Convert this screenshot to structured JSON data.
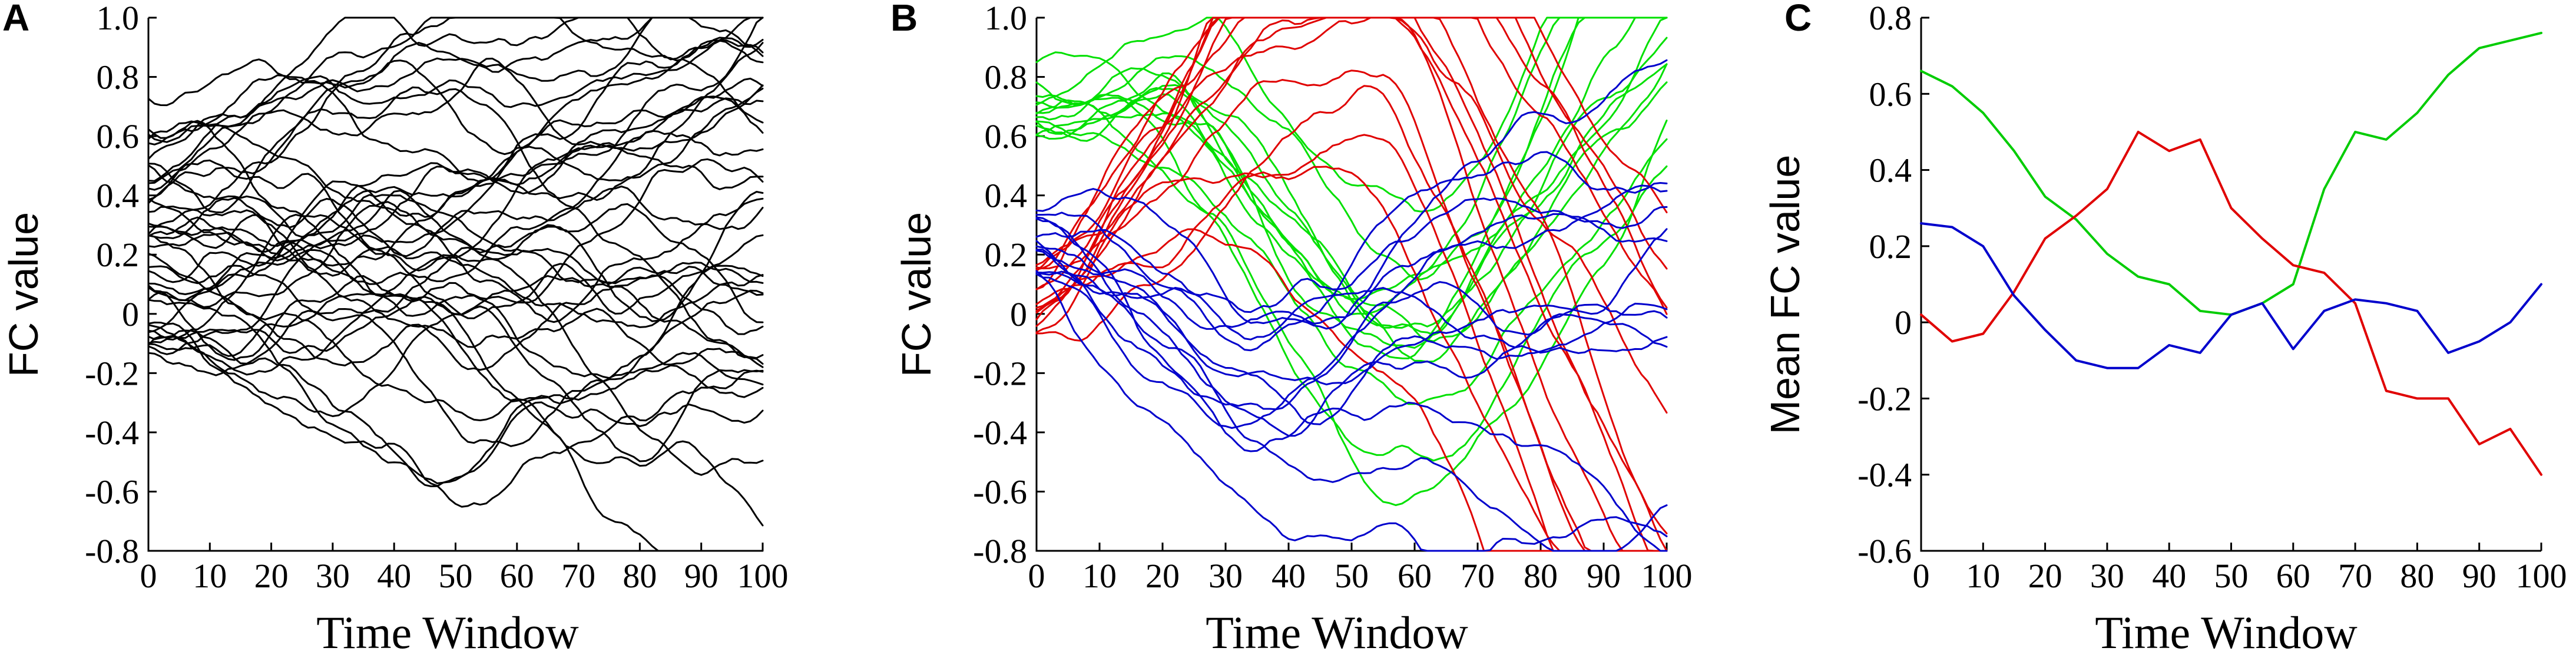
{
  "chart_data": [
    {
      "panel": "A",
      "type": "line",
      "xlabel": "Time Window",
      "ylabel": "FC value",
      "xlim": [
        0,
        100
      ],
      "ylim": [
        -0.8,
        1.0
      ],
      "xticks": [
        "0",
        "10",
        "20",
        "30",
        "40",
        "50",
        "60",
        "70",
        "80",
        "90",
        "100"
      ],
      "yticks": [
        "1.0",
        "0.8",
        "0.6",
        "0.4",
        "0.2",
        "0",
        "-0.2",
        "-0.4",
        "-0.6",
        "-0.8"
      ],
      "grid": false,
      "line_count": 40,
      "colors": [
        "#000000"
      ]
    },
    {
      "panel": "B",
      "type": "line",
      "xlabel": "Time Window",
      "ylabel": "FC value",
      "xlim": [
        0,
        100
      ],
      "ylim": [
        -0.8,
        1.0
      ],
      "xticks": [
        "0",
        "10",
        "20",
        "30",
        "40",
        "50",
        "60",
        "70",
        "80",
        "90",
        "100"
      ],
      "yticks": [
        "1.0",
        "0.8",
        "0.6",
        "0.4",
        "0.2",
        "0",
        "-0.2",
        "-0.4",
        "-0.6",
        "-0.8"
      ],
      "grid": false,
      "groups": [
        {
          "color": "#00e000",
          "count": 13
        },
        {
          "color": "#e00000",
          "count": 14
        },
        {
          "color": "#0000cc",
          "count": 13
        }
      ]
    },
    {
      "panel": "C",
      "type": "line",
      "xlabel": "Time Window",
      "ylabel": "Mean FC value",
      "xlim": [
        0,
        100
      ],
      "ylim": [
        -0.6,
        0.8
      ],
      "xticks": [
        "0",
        "10",
        "20",
        "30",
        "40",
        "50",
        "60",
        "70",
        "80",
        "90",
        "100"
      ],
      "yticks": [
        "0.8",
        "0.6",
        "0.4",
        "0.2",
        "0",
        "-0.2",
        "-0.4",
        "-0.6"
      ],
      "grid": false,
      "x": [
        0,
        5,
        10,
        15,
        20,
        25,
        30,
        35,
        40,
        45,
        50,
        55,
        60,
        65,
        70,
        75,
        80,
        85,
        90,
        95,
        100
      ],
      "series": [
        {
          "color": "#00cc00",
          "values": [
            0.66,
            0.62,
            0.55,
            0.45,
            0.33,
            0.27,
            0.18,
            0.12,
            0.1,
            0.03,
            0.02,
            0.05,
            0.1,
            0.35,
            0.5,
            0.48,
            0.55,
            0.65,
            0.72,
            0.74,
            0.76
          ]
        },
        {
          "color": "#e00000",
          "values": [
            0.02,
            -0.05,
            -0.03,
            0.08,
            0.22,
            0.28,
            0.35,
            0.5,
            0.45,
            0.48,
            0.3,
            0.22,
            0.15,
            0.13,
            0.05,
            -0.18,
            -0.2,
            -0.2,
            -0.32,
            -0.28,
            -0.4
          ]
        },
        {
          "color": "#0000cc",
          "values": [
            0.26,
            0.25,
            0.2,
            0.07,
            -0.02,
            -0.1,
            -0.12,
            -0.12,
            -0.06,
            -0.08,
            0.02,
            0.05,
            -0.07,
            0.03,
            0.06,
            0.05,
            0.03,
            -0.08,
            -0.05,
            0.0,
            0.1
          ]
        }
      ]
    }
  ]
}
